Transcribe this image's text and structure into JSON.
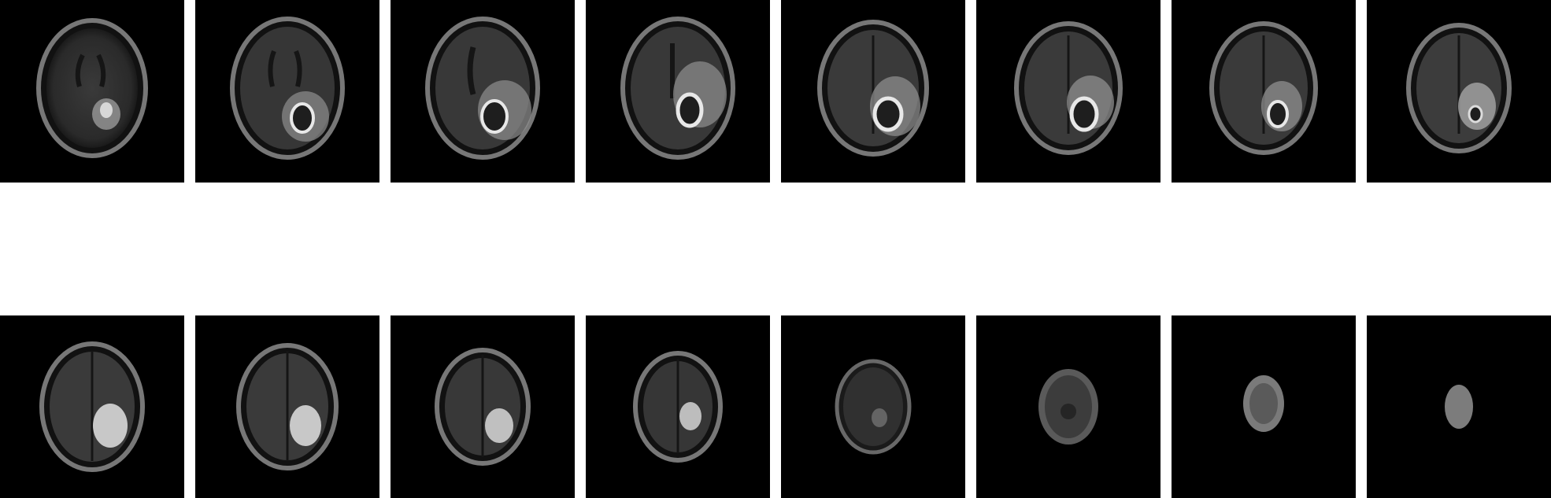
{
  "figure": {
    "rows": 2,
    "columns": 8,
    "background": "#ffffff",
    "tile_background": "#000000",
    "panel_count": 16
  },
  "rows": [
    {
      "id": "row-1",
      "description_free": true,
      "slices": [
        {
          "index": 1,
          "lesion": "small-bright"
        },
        {
          "index": 2,
          "lesion": "ring"
        },
        {
          "index": 3,
          "lesion": "ring"
        },
        {
          "index": 4,
          "lesion": "ring"
        },
        {
          "index": 5,
          "lesion": "ring"
        },
        {
          "index": 6,
          "lesion": "ring"
        },
        {
          "index": 7,
          "lesion": "ring"
        },
        {
          "index": 8,
          "lesion": "bright-patch"
        }
      ]
    },
    {
      "id": "row-2",
      "description_free": true,
      "slices": [
        {
          "index": 9,
          "lesion": "bright-patch"
        },
        {
          "index": 10,
          "lesion": "bright-patch"
        },
        {
          "index": 11,
          "lesion": "bright-patch"
        },
        {
          "index": 12,
          "lesion": "bright-patch"
        },
        {
          "index": 13,
          "lesion": "faint"
        },
        {
          "index": 14,
          "lesion": "faint"
        },
        {
          "index": 15,
          "lesion": "none"
        },
        {
          "index": 16,
          "lesion": "none"
        }
      ]
    }
  ],
  "colors": {
    "skull": "#6e6e6e",
    "brain": "#3c3c3c",
    "lesion_core": "#1e1e1e",
    "lesion_edge": "#e8e8e8",
    "edema": "#9a9a9a"
  }
}
